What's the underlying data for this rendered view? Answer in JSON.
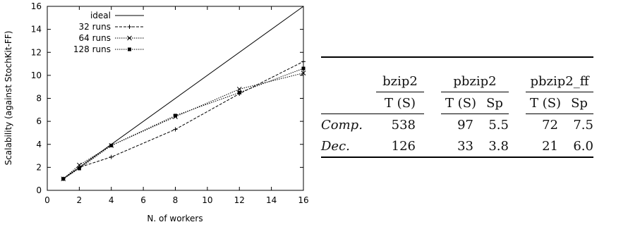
{
  "chart_data": {
    "type": "line",
    "xlabel": "N. of workers",
    "ylabel": "Scalability (against StochKit-FF)",
    "xlim": [
      0,
      16
    ],
    "ylim": [
      0,
      16
    ],
    "xticks": [
      0,
      2,
      4,
      6,
      8,
      10,
      12,
      14,
      16
    ],
    "yticks": [
      0,
      2,
      4,
      6,
      8,
      10,
      12,
      14,
      16
    ],
    "legend_position": "top-left",
    "series": [
      {
        "name": "ideal",
        "x": [
          1,
          16
        ],
        "y": [
          1,
          16
        ],
        "marker": "none",
        "dash": "solid"
      },
      {
        "name": "32 runs",
        "x": [
          1,
          2,
          4,
          8,
          12,
          16
        ],
        "y": [
          1.0,
          2.0,
          2.9,
          5.3,
          8.4,
          11.2
        ],
        "marker": "plus",
        "dash": "dashed"
      },
      {
        "name": "64 runs",
        "x": [
          1,
          2,
          4,
          8,
          12,
          16
        ],
        "y": [
          1.0,
          2.2,
          3.9,
          6.4,
          8.8,
          10.2
        ],
        "marker": "cross",
        "dash": "dotted"
      },
      {
        "name": "128 runs",
        "x": [
          1,
          2,
          4,
          8,
          12,
          16
        ],
        "y": [
          1.0,
          1.9,
          3.9,
          6.5,
          8.5,
          10.6
        ],
        "marker": "square",
        "dash": "dotted"
      }
    ]
  },
  "table": {
    "groups": [
      "bzip2",
      "pbzip2",
      "pbzip2_ff"
    ],
    "subheaders": [
      "T (S)",
      "T (S)",
      "Sp",
      "T (S)",
      "Sp"
    ],
    "rows": [
      {
        "label": "Comp.",
        "cells": [
          "538",
          "97",
          "5.5",
          "72",
          "7.5"
        ]
      },
      {
        "label": "Dec.",
        "cells": [
          "126",
          "33",
          "3.8",
          "21",
          "6.0"
        ]
      }
    ]
  }
}
